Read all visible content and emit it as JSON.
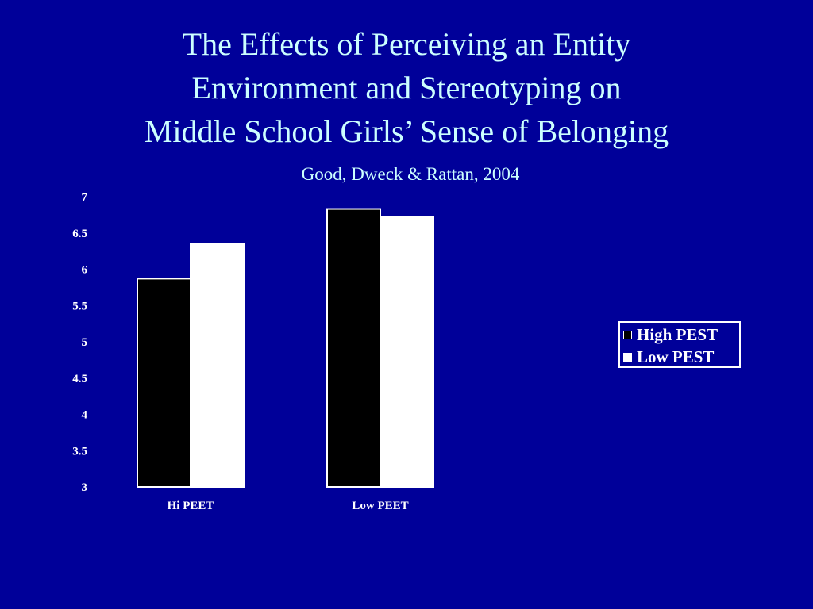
{
  "slide": {
    "title_lines": [
      "The Effects of Perceiving an Entity",
      "Environment and Stereotyping on",
      "Middle School Girls’ Sense of Belonging"
    ],
    "subtitle": "Good, Dweck & Rattan, 2004"
  },
  "colors": {
    "background": "#000099",
    "title_text": "#ccffff",
    "high_pest": "#000000",
    "low_pest": "#ffffff"
  },
  "chart_data": {
    "type": "bar",
    "title": "",
    "xlabel": "",
    "ylabel": "",
    "categories": [
      "Hi PEET",
      "Low PEET"
    ],
    "series": [
      {
        "name": "High PEST",
        "values": [
          5.87,
          6.83
        ]
      },
      {
        "name": "Low PEST",
        "values": [
          6.35,
          6.72
        ]
      }
    ],
    "ylim": [
      3,
      7
    ],
    "yticks": [
      "7",
      "6.5",
      "6",
      "5.5",
      "5",
      "4.5",
      "4",
      "3.5",
      "3"
    ],
    "grid": false,
    "legend_position": "right"
  }
}
